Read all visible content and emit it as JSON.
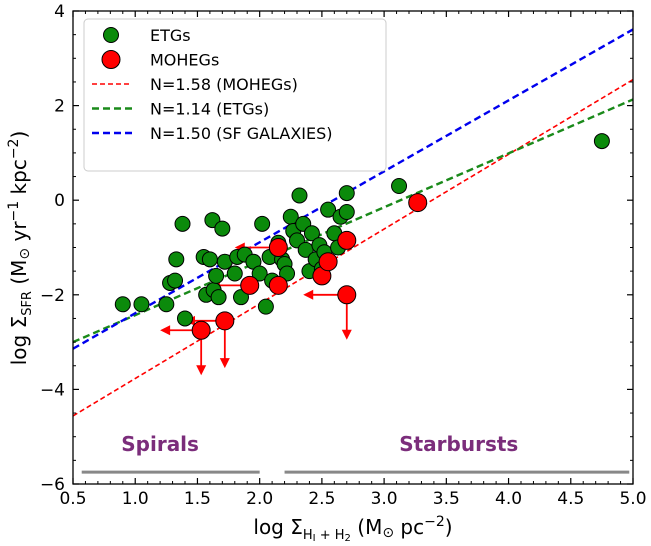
{
  "chart_data": {
    "type": "scatter",
    "xlabel_prefix": "log Σ",
    "xlabel_sub": "H",
    "xlabel_sub_a": "I",
    "xlabel_sub_plus": " + H",
    "xlabel_sub_b": "2",
    "xlabel_units": " (M",
    "xlabel_sun": "⊙",
    "xlabel_units_end": " pc",
    "xlabel_exp": "−2",
    "xlabel_close": ")",
    "ylabel_prefix": "log Σ",
    "ylabel_sub": "SFR",
    "ylabel_units": " (M",
    "ylabel_sun": "⊙",
    "ylabel_yr": " yr",
    "ylabel_exp1": "−1",
    "ylabel_kpc": " kpc",
    "ylabel_exp2": "−2",
    "ylabel_close": ")",
    "xlim": [
      0.5,
      5.0
    ],
    "ylim": [
      -6,
      4
    ],
    "xticks": [
      0.5,
      1.0,
      1.5,
      2.0,
      2.5,
      3.0,
      3.5,
      4.0,
      4.5,
      5.0
    ],
    "xtick_labels": [
      "0.5",
      "1.0",
      "1.5",
      "2.0",
      "2.5",
      "3.0",
      "3.5",
      "4.0",
      "4.5",
      "5.0"
    ],
    "yticks": [
      -6,
      -4,
      -2,
      0,
      2,
      4
    ],
    "ytick_labels": [
      "−6",
      "−4",
      "−2",
      "0",
      "2",
      "4"
    ],
    "grid": false,
    "legend_position": "top-left",
    "series": [
      {
        "name": "ETGs",
        "marker": "circle",
        "color": "#0b8a0b",
        "points": [
          [
            0.9,
            -2.2
          ],
          [
            1.05,
            -2.2
          ],
          [
            1.25,
            -2.2
          ],
          [
            1.28,
            -1.75
          ],
          [
            1.32,
            -1.7
          ],
          [
            1.33,
            -1.25
          ],
          [
            1.38,
            -0.5
          ],
          [
            1.4,
            -2.5
          ],
          [
            1.55,
            -1.2
          ],
          [
            1.57,
            -2.0
          ],
          [
            1.6,
            -1.25
          ],
          [
            1.62,
            -0.42
          ],
          [
            1.63,
            -1.9
          ],
          [
            1.65,
            -1.6
          ],
          [
            1.67,
            -2.05
          ],
          [
            1.7,
            -0.6
          ],
          [
            1.72,
            -1.3
          ],
          [
            1.8,
            -1.55
          ],
          [
            1.82,
            -1.2
          ],
          [
            1.85,
            -2.05
          ],
          [
            1.88,
            -1.15
          ],
          [
            1.95,
            -1.3
          ],
          [
            2.0,
            -1.55
          ],
          [
            2.02,
            -0.5
          ],
          [
            2.05,
            -2.25
          ],
          [
            2.08,
            -1.2
          ],
          [
            2.1,
            -1.7
          ],
          [
            2.15,
            -0.9
          ],
          [
            2.18,
            -1.25
          ],
          [
            2.2,
            -1.35
          ],
          [
            2.22,
            -1.55
          ],
          [
            2.25,
            -0.35
          ],
          [
            2.27,
            -0.65
          ],
          [
            2.3,
            -0.85
          ],
          [
            2.32,
            0.1
          ],
          [
            2.35,
            -0.5
          ],
          [
            2.37,
            -1.05
          ],
          [
            2.4,
            -1.5
          ],
          [
            2.42,
            -0.7
          ],
          [
            2.45,
            -1.25
          ],
          [
            2.48,
            -0.95
          ],
          [
            2.5,
            -1.45
          ],
          [
            2.52,
            -1.1
          ],
          [
            2.55,
            -0.2
          ],
          [
            2.6,
            -0.7
          ],
          [
            2.63,
            -1.0
          ],
          [
            2.65,
            -0.35
          ],
          [
            2.7,
            -0.25
          ],
          [
            2.7,
            0.15
          ],
          [
            3.12,
            0.3
          ],
          [
            4.75,
            1.25
          ]
        ]
      },
      {
        "name": "MOHEGs",
        "marker": "circle",
        "color": "#ff0000",
        "points": [
          [
            1.53,
            -2.75
          ],
          [
            1.72,
            -2.55
          ],
          [
            1.92,
            -1.8
          ],
          [
            2.15,
            -1.8
          ],
          [
            2.15,
            -1.0
          ],
          [
            2.5,
            -1.6
          ],
          [
            2.55,
            -1.3
          ],
          [
            2.7,
            -0.85
          ],
          [
            2.7,
            -2.0
          ],
          [
            3.27,
            -0.05
          ]
        ]
      }
    ],
    "limits": {
      "name": "upper limits",
      "color": "#ff0000",
      "arrows_left": [
        [
          1.53,
          -2.75,
          1.2
        ],
        [
          1.72,
          -2.55,
          1.4
        ],
        [
          1.92,
          -1.8,
          1.6
        ],
        [
          2.15,
          -1.0,
          1.8
        ],
        [
          2.7,
          -2.0,
          2.35
        ]
      ],
      "arrows_down": [
        [
          1.53,
          -2.75,
          -3.7
        ],
        [
          1.72,
          -2.55,
          -3.55
        ],
        [
          2.7,
          -2.0,
          -2.95
        ]
      ]
    },
    "lines": [
      {
        "name": "N=1.58 (MOHEGs)",
        "color": "#ff0000",
        "slope": 1.58,
        "intercept": -5.35
      },
      {
        "name": "N=1.14 (ETGs)",
        "color": "#1a8a1a",
        "slope": 1.14,
        "intercept": -3.57
      },
      {
        "name": "N=1.50 (SF GALAXIES)",
        "color": "#0000ee",
        "slope": 1.5,
        "intercept": -3.89
      }
    ],
    "regions": [
      {
        "label": "Spirals",
        "x_range": [
          0.57,
          2.0
        ],
        "y": -5.75,
        "label_x": 1.2,
        "label_y": -5.3
      },
      {
        "label": "Starbursts",
        "x_range": [
          2.2,
          4.97
        ],
        "y": -5.75,
        "label_x": 3.6,
        "label_y": -5.3
      }
    ],
    "region_color": "#7b2d7b",
    "region_line_color": "#888888"
  }
}
